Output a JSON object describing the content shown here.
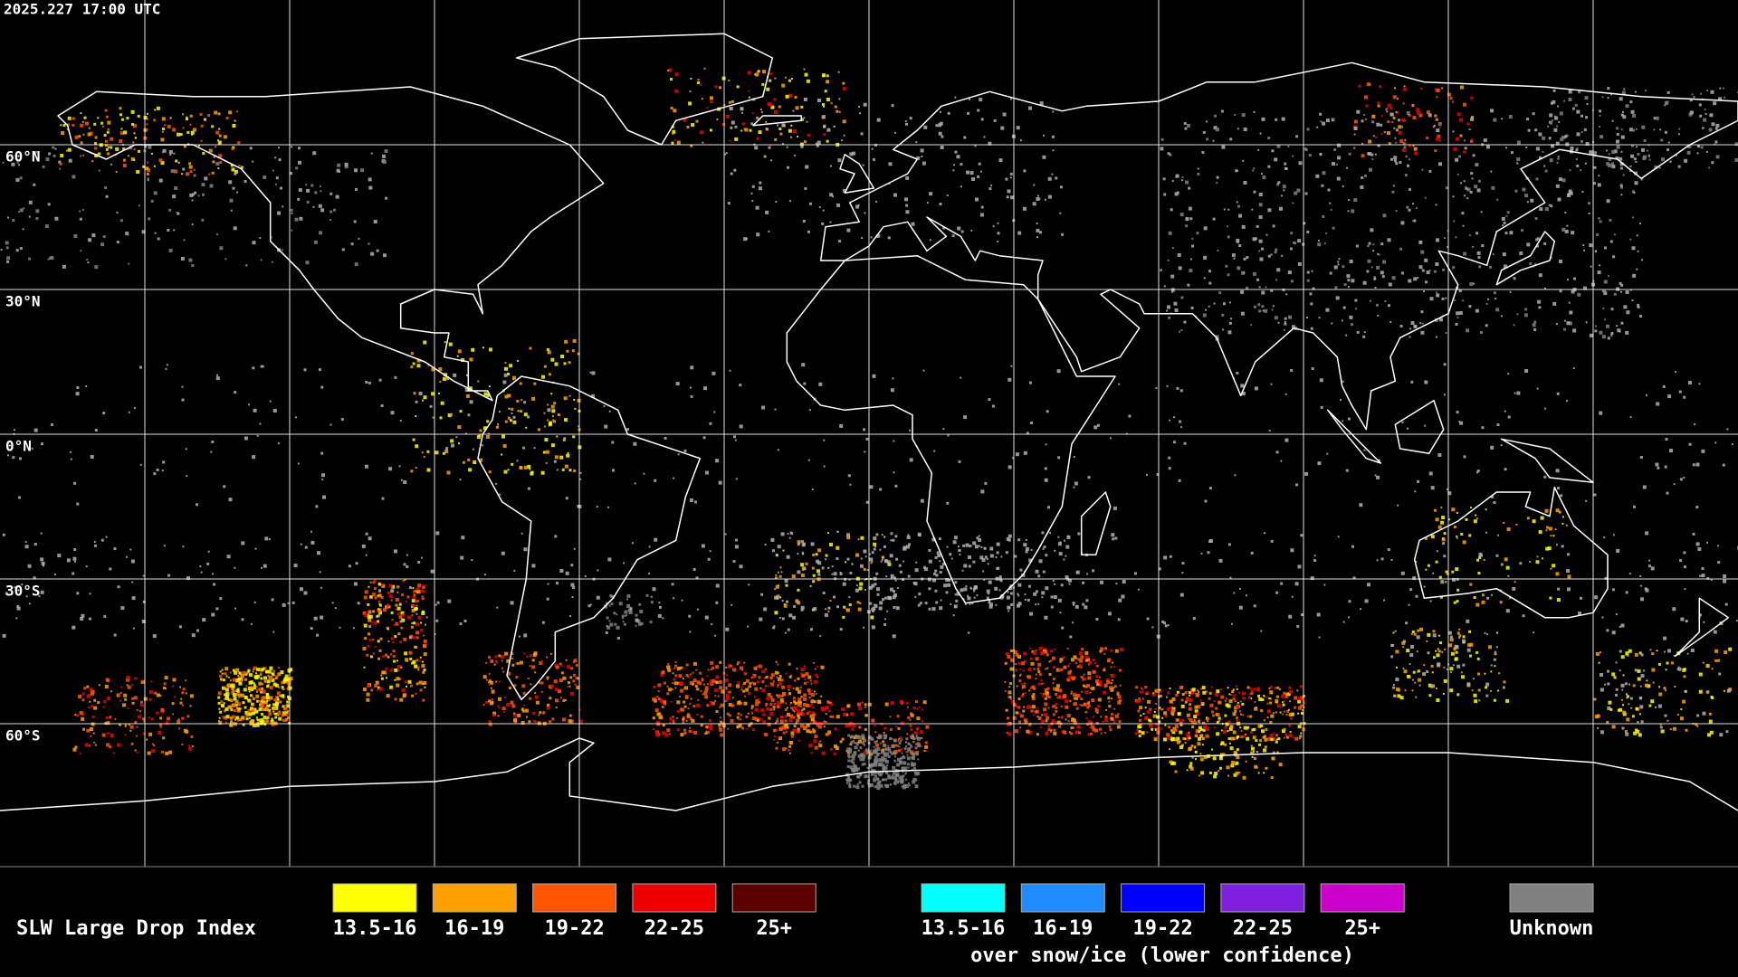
{
  "timestamp": "2025.227 17:00 UTC",
  "latitude_labels": [
    "60°N",
    "30°N",
    "0°N",
    "30°S",
    "60°S"
  ],
  "legend": {
    "title": "SLW Large Drop Index",
    "items": [
      {
        "label": "13.5-16",
        "color": "#ffff00"
      },
      {
        "label": "16-19",
        "color": "#ffa000"
      },
      {
        "label": "19-22",
        "color": "#ff5500"
      },
      {
        "label": "22-25",
        "color": "#ee0000"
      },
      {
        "label": "25+",
        "color": "#5a0000"
      }
    ],
    "snow_ice_items": [
      {
        "label": "13.5-16",
        "color": "#00ffff"
      },
      {
        "label": "16-19",
        "color": "#1e8cff"
      },
      {
        "label": "19-22",
        "color": "#0000ff"
      },
      {
        "label": "22-25",
        "color": "#7f1fe0"
      },
      {
        "label": "25+",
        "color": "#cc00cc"
      }
    ],
    "snow_ice_caption": "over snow/ice (lower confidence)",
    "unknown": {
      "label": "Unknown",
      "color": "#808080"
    }
  }
}
